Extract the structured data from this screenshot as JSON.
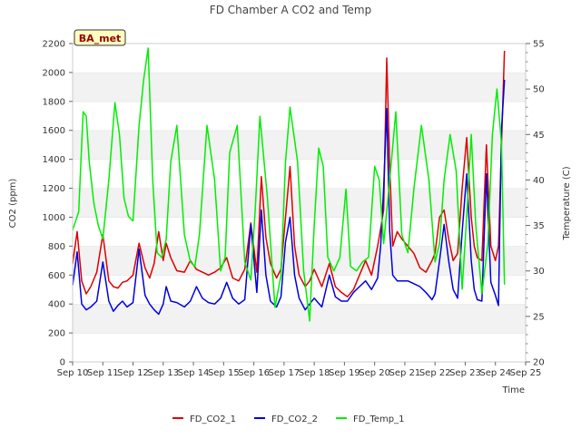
{
  "chart_data": {
    "type": "line",
    "title": "FD Chamber A CO2 and Temp",
    "xlabel": "Time",
    "ylabel": "CO2 (ppm)",
    "y2label": "Temperature (C)",
    "site_label": "BA_met",
    "xlim": [
      10,
      25
    ],
    "ylim": [
      0,
      2200
    ],
    "y2lim": [
      20,
      55
    ],
    "x_ticks": [
      "Sep 10",
      "Sep 11",
      "Sep 12",
      "Sep 13",
      "Sep 14",
      "Sep 15",
      "Sep 16",
      "Sep 17",
      "Sep 18",
      "Sep 19",
      "Sep 20",
      "Sep 21",
      "Sep 22",
      "Sep 23",
      "Sep 24",
      "Sep 25"
    ],
    "y_ticks": [
      0,
      200,
      400,
      600,
      800,
      1000,
      1200,
      1400,
      1600,
      1800,
      2000,
      2200
    ],
    "y2_ticks": [
      20,
      25,
      30,
      35,
      40,
      45,
      50,
      55
    ],
    "grid": "horizontal bands",
    "legend_position": "bottom",
    "series": [
      {
        "name": "FD_CO2_1",
        "axis": "left",
        "color": "#dd0000",
        "x": [
          10.0,
          10.15,
          10.3,
          10.45,
          10.6,
          10.8,
          11.0,
          11.2,
          11.35,
          11.5,
          11.65,
          11.8,
          12.0,
          12.2,
          12.4,
          12.55,
          12.7,
          12.85,
          13.0,
          13.1,
          13.25,
          13.45,
          13.7,
          13.9,
          14.1,
          14.3,
          14.5,
          14.7,
          14.9,
          15.1,
          15.3,
          15.5,
          15.7,
          15.9,
          16.1,
          16.25,
          16.4,
          16.55,
          16.75,
          16.9,
          17.05,
          17.2,
          17.35,
          17.5,
          17.7,
          17.85,
          18.0,
          18.25,
          18.5,
          18.7,
          18.9,
          19.1,
          19.3,
          19.5,
          19.7,
          19.9,
          20.1,
          20.2,
          20.3,
          20.4,
          20.5,
          20.6,
          20.75,
          20.9,
          21.1,
          21.3,
          21.5,
          21.7,
          21.9,
          22.0,
          22.15,
          22.3,
          22.45,
          22.6,
          22.75,
          22.9,
          23.05,
          23.2,
          23.3,
          23.4,
          23.55,
          23.7,
          23.85,
          24.0,
          24.1,
          24.2,
          24.3
        ],
        "y": [
          680,
          900,
          560,
          470,
          520,
          620,
          880,
          560,
          520,
          510,
          550,
          560,
          600,
          820,
          650,
          580,
          680,
          900,
          700,
          820,
          720,
          630,
          620,
          700,
          640,
          620,
          600,
          620,
          650,
          720,
          580,
          560,
          640,
          960,
          620,
          1280,
          860,
          680,
          580,
          640,
          1000,
          1350,
          800,
          600,
          520,
          560,
          640,
          520,
          680,
          520,
          480,
          450,
          500,
          600,
          700,
          600,
          800,
          920,
          1050,
          2100,
          1350,
          800,
          900,
          850,
          800,
          750,
          650,
          620,
          700,
          750,
          1000,
          1050,
          850,
          700,
          750,
          1200,
          1550,
          1000,
          800,
          720,
          700,
          1500,
          800,
          700,
          800,
          1500,
          2150
        ]
      },
      {
        "name": "FD_CO2_2",
        "axis": "left",
        "color": "#0000dd",
        "x": [
          10.0,
          10.15,
          10.3,
          10.45,
          10.6,
          10.8,
          11.0,
          11.2,
          11.35,
          11.5,
          11.65,
          11.8,
          12.0,
          12.2,
          12.4,
          12.55,
          12.7,
          12.85,
          13.0,
          13.1,
          13.25,
          13.45,
          13.7,
          13.9,
          14.1,
          14.3,
          14.5,
          14.7,
          14.9,
          15.1,
          15.3,
          15.5,
          15.7,
          15.9,
          16.1,
          16.25,
          16.4,
          16.55,
          16.75,
          16.9,
          17.05,
          17.2,
          17.35,
          17.5,
          17.7,
          17.85,
          18.0,
          18.25,
          18.5,
          18.7,
          18.9,
          19.1,
          19.3,
          19.5,
          19.7,
          19.9,
          20.1,
          20.2,
          20.3,
          20.4,
          20.5,
          20.6,
          20.75,
          20.9,
          21.1,
          21.3,
          21.5,
          21.7,
          21.9,
          22.0,
          22.15,
          22.3,
          22.45,
          22.6,
          22.75,
          22.9,
          23.05,
          23.2,
          23.3,
          23.4,
          23.55,
          23.7,
          23.85,
          24.0,
          24.1,
          24.2,
          24.3
        ],
        "y": [
          530,
          760,
          400,
          360,
          380,
          420,
          690,
          420,
          350,
          390,
          420,
          380,
          410,
          780,
          460,
          400,
          360,
          330,
          400,
          520,
          420,
          410,
          380,
          420,
          520,
          440,
          410,
          400,
          440,
          550,
          440,
          400,
          430,
          950,
          480,
          1050,
          600,
          420,
          380,
          450,
          830,
          1000,
          600,
          440,
          360,
          400,
          440,
          380,
          600,
          450,
          420,
          420,
          480,
          520,
          560,
          500,
          580,
          800,
          1200,
          1750,
          900,
          600,
          560,
          560,
          560,
          540,
          520,
          480,
          430,
          470,
          700,
          950,
          700,
          500,
          440,
          900,
          1300,
          700,
          500,
          430,
          420,
          1300,
          550,
          460,
          390,
          1600,
          1950
        ]
      },
      {
        "name": "FD_Temp_1",
        "axis": "right",
        "color": "#00ee00",
        "x": [
          10.0,
          10.2,
          10.35,
          10.45,
          10.55,
          10.7,
          10.85,
          11.0,
          11.2,
          11.4,
          11.55,
          11.7,
          11.85,
          12.0,
          12.2,
          12.35,
          12.5,
          12.65,
          12.8,
          12.95,
          13.1,
          13.25,
          13.45,
          13.7,
          13.9,
          14.05,
          14.2,
          14.45,
          14.7,
          14.9,
          15.05,
          15.2,
          15.45,
          15.7,
          15.9,
          16.05,
          16.2,
          16.45,
          16.7,
          16.9,
          17.05,
          17.2,
          17.45,
          17.65,
          17.85,
          18.0,
          18.15,
          18.3,
          18.45,
          18.65,
          18.85,
          19.05,
          19.2,
          19.4,
          19.6,
          19.8,
          20.0,
          20.15,
          20.3,
          20.5,
          20.7,
          20.9,
          21.1,
          21.3,
          21.55,
          21.8,
          22.0,
          22.15,
          22.3,
          22.5,
          22.7,
          22.9,
          23.05,
          23.2,
          23.35,
          23.55,
          23.75,
          23.9,
          24.05,
          24.2,
          24.3
        ],
        "y": [
          34.5,
          36.5,
          47.5,
          47.0,
          42.0,
          37.5,
          35.0,
          33.5,
          40.0,
          48.5,
          45.0,
          38.0,
          36.0,
          35.5,
          46.0,
          51.0,
          54.5,
          40.0,
          32.0,
          31.5,
          33.5,
          42.0,
          46.0,
          34.0,
          31.0,
          30.5,
          34.0,
          46.0,
          40.0,
          30.0,
          31.5,
          43.0,
          46.0,
          31.0,
          29.0,
          37.0,
          47.0,
          38.0,
          26.0,
          29.5,
          42.0,
          48.0,
          42.0,
          30.0,
          24.5,
          35.0,
          43.5,
          41.5,
          31.5,
          30.0,
          31.5,
          39.0,
          30.5,
          30.0,
          31.0,
          31.5,
          41.5,
          40.0,
          33.0,
          40.0,
          47.5,
          34.0,
          32.0,
          39.0,
          46.0,
          40.0,
          31.0,
          33.0,
          40.0,
          45.0,
          41.0,
          28.0,
          36.0,
          45.0,
          35.0,
          27.5,
          33.0,
          45.0,
          50.0,
          44.0,
          28.5
        ]
      }
    ]
  }
}
